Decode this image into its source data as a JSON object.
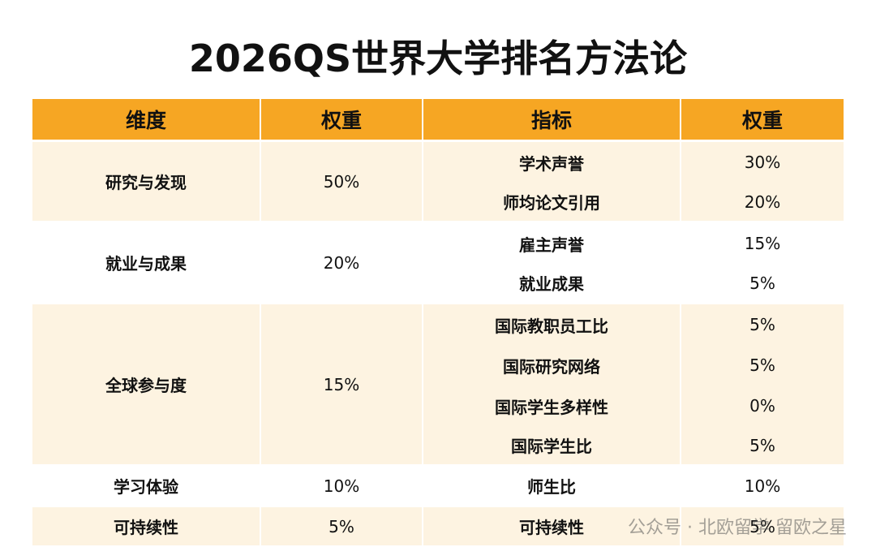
{
  "title": "2026QS世界大学排名方法论",
  "table": {
    "headers": [
      "维度",
      "权重",
      "指标",
      "权重"
    ],
    "groups": [
      {
        "dimension": "研究与发现",
        "weight": "50%",
        "indicators": [
          {
            "name": "学术声誉",
            "weight": "30%"
          },
          {
            "name": "师均论文引用",
            "weight": "20%"
          }
        ]
      },
      {
        "dimension": "就业与成果",
        "weight": "20%",
        "indicators": [
          {
            "name": "雇主声誉",
            "weight": "15%"
          },
          {
            "name": "就业成果",
            "weight": "5%"
          }
        ]
      },
      {
        "dimension": "全球参与度",
        "weight": "15%",
        "indicators": [
          {
            "name": "国际教职员工比",
            "weight": "5%"
          },
          {
            "name": "国际研究网络",
            "weight": "5%"
          },
          {
            "name": "国际学生多样性",
            "weight": "0%"
          },
          {
            "name": "国际学生比",
            "weight": "5%"
          }
        ]
      },
      {
        "dimension": "学习体验",
        "weight": "10%",
        "indicators": [
          {
            "name": "师生比",
            "weight": "10%"
          }
        ]
      },
      {
        "dimension": "可持续性",
        "weight": "5%",
        "indicators": [
          {
            "name": "可持续性",
            "weight": "5%"
          }
        ]
      }
    ]
  },
  "watermark": "公众号 · 北欧留学 留欧之星"
}
